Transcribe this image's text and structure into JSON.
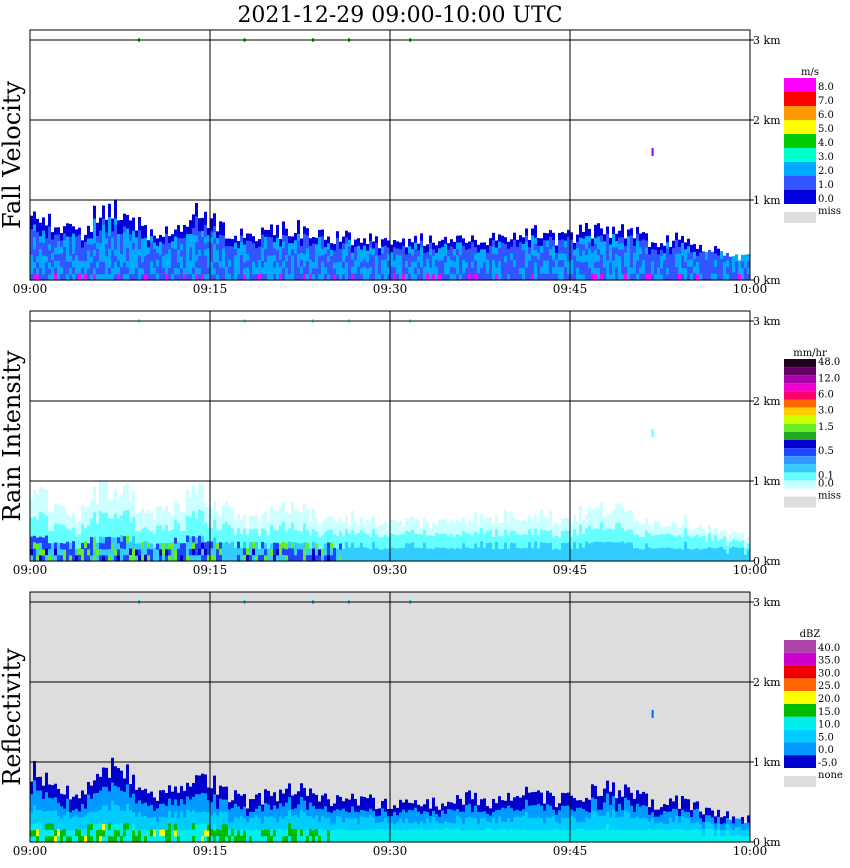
{
  "title": "2021-12-29   09:00-10:00 UTC",
  "x_ticks": [
    "09:00",
    "09:15",
    "09:30",
    "09:45",
    "10:00"
  ],
  "y_ticks": [
    "0 km",
    "1 km",
    "2 km",
    "3 km"
  ],
  "chart_data": [
    {
      "type": "heatmap",
      "ylabel": "Fall Velocity",
      "unit": "m/s",
      "xlim": [
        "09:00",
        "10:00"
      ],
      "ylim_km": [
        0,
        3.5
      ],
      "background": "#ffffff",
      "grid": true,
      "legend_position": "right",
      "colorbar": [
        {
          "label": "8.0",
          "color": "#ff00ff"
        },
        {
          "label": "7.0",
          "color": "#ff0000"
        },
        {
          "label": "6.0",
          "color": "#ff9900"
        },
        {
          "label": "5.0",
          "color": "#ffff00"
        },
        {
          "label": "4.0",
          "color": "#00cc00"
        },
        {
          "label": "3.0",
          "color": "#00ffcc"
        },
        {
          "label": "2.0",
          "color": "#00aaff"
        },
        {
          "label": "1.0",
          "color": "#3355ff"
        },
        {
          "label": "0.0",
          "color": "#0000dd"
        }
      ],
      "missing_label": "miss",
      "missing_color": "#dddddd",
      "echo_profile": [
        {
          "t": "09:00",
          "top_km": 0.95
        },
        {
          "t": "09:02",
          "top_km": 0.75
        },
        {
          "t": "09:04",
          "top_km": 0.6
        },
        {
          "t": "09:06",
          "top_km": 1.0
        },
        {
          "t": "09:08",
          "top_km": 0.9
        },
        {
          "t": "09:10",
          "top_km": 0.6
        },
        {
          "t": "09:12",
          "top_km": 0.7
        },
        {
          "t": "09:14",
          "top_km": 0.95
        },
        {
          "t": "09:16",
          "top_km": 0.7
        },
        {
          "t": "09:18",
          "top_km": 0.55
        },
        {
          "t": "09:20",
          "top_km": 0.65
        },
        {
          "t": "09:22",
          "top_km": 0.7
        },
        {
          "t": "09:24",
          "top_km": 0.6
        },
        {
          "t": "09:26",
          "top_km": 0.6
        },
        {
          "t": "09:28",
          "top_km": 0.55
        },
        {
          "t": "09:30",
          "top_km": 0.5
        },
        {
          "t": "09:32",
          "top_km": 0.55
        },
        {
          "t": "09:34",
          "top_km": 0.5
        },
        {
          "t": "09:36",
          "top_km": 0.6
        },
        {
          "t": "09:38",
          "top_km": 0.55
        },
        {
          "t": "09:40",
          "top_km": 0.6
        },
        {
          "t": "09:42",
          "top_km": 0.65
        },
        {
          "t": "09:44",
          "top_km": 0.55
        },
        {
          "t": "09:46",
          "top_km": 0.65
        },
        {
          "t": "09:48",
          "top_km": 0.7
        },
        {
          "t": "09:50",
          "top_km": 0.65
        },
        {
          "t": "09:52",
          "top_km": 0.5
        },
        {
          "t": "09:54",
          "top_km": 0.55
        },
        {
          "t": "09:56",
          "top_km": 0.45
        },
        {
          "t": "09:58",
          "top_km": 0.35
        },
        {
          "t": "10:00",
          "top_km": 0.3
        }
      ]
    },
    {
      "type": "heatmap",
      "ylabel": "Rain Intensity",
      "unit": "mm/hr",
      "xlim": [
        "09:00",
        "10:00"
      ],
      "ylim_km": [
        0,
        3.5
      ],
      "background": "#ffffff",
      "grid": true,
      "legend_position": "right",
      "colorbar": [
        {
          "label": "48.0",
          "color": "#220022"
        },
        {
          "label": "",
          "color": "#660066"
        },
        {
          "label": "12.0",
          "color": "#aa00aa"
        },
        {
          "label": "",
          "color": "#ee00cc"
        },
        {
          "label": "6.0",
          "color": "#ff0066"
        },
        {
          "label": "",
          "color": "#ff6600"
        },
        {
          "label": "3.0",
          "color": "#ffcc00"
        },
        {
          "label": "",
          "color": "#ccff00"
        },
        {
          "label": "1.5",
          "color": "#66ee22"
        },
        {
          "label": "",
          "color": "#22aa22"
        },
        {
          "label": "",
          "color": "#0000cc"
        },
        {
          "label": "0.5",
          "color": "#2244ff"
        },
        {
          "label": "",
          "color": "#3399ff"
        },
        {
          "label": "",
          "color": "#33ccff"
        },
        {
          "label": "0.1",
          "color": "#66ffff"
        },
        {
          "label": "0.0",
          "color": "#ccffff"
        }
      ],
      "missing_label": "miss",
      "missing_color": "#dddddd"
    },
    {
      "type": "heatmap",
      "ylabel": "Reflectivity",
      "unit": "dBZ",
      "xlim": [
        "09:00",
        "10:00"
      ],
      "ylim_km": [
        0,
        3.5
      ],
      "background": "#dddddd",
      "grid": true,
      "legend_position": "right",
      "colorbar": [
        {
          "label": "40.0",
          "color": "#aa44aa"
        },
        {
          "label": "35.0",
          "color": "#cc00cc"
        },
        {
          "label": "30.0",
          "color": "#ee0000"
        },
        {
          "label": "25.0",
          "color": "#ff6600"
        },
        {
          "label": "20.0",
          "color": "#ffff00"
        },
        {
          "label": "15.0",
          "color": "#00bb00"
        },
        {
          "label": "10.0",
          "color": "#00eeee"
        },
        {
          "label": "5.0",
          "color": "#00ccff"
        },
        {
          "label": "0.0",
          "color": "#0099ff"
        },
        {
          "label": "-5.0",
          "color": "#0000cc"
        }
      ],
      "missing_label": "none",
      "missing_color": "#dddddd"
    }
  ]
}
